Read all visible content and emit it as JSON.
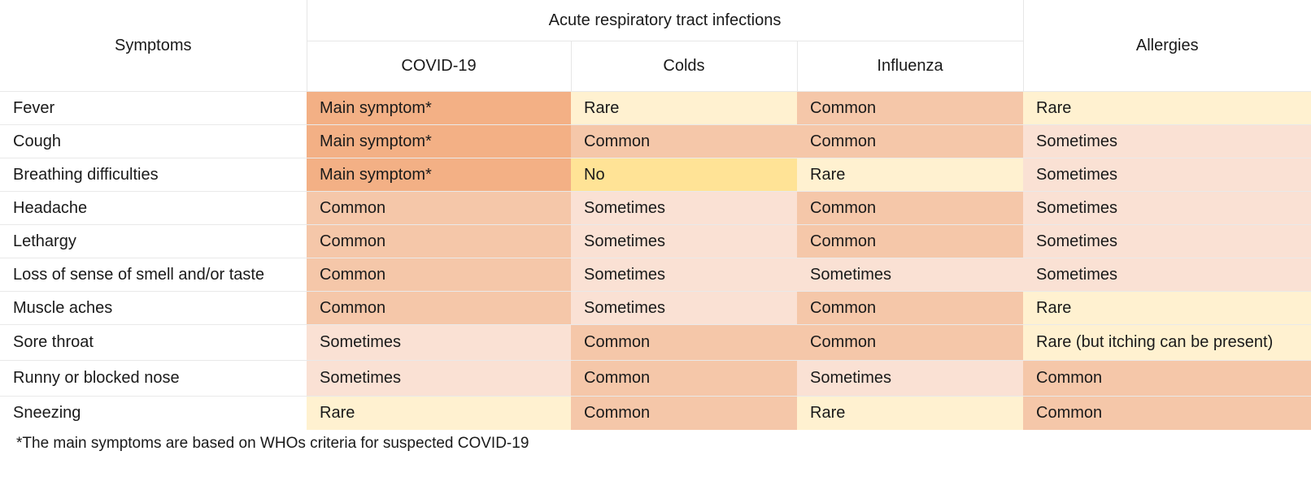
{
  "header": {
    "symptoms_label": "Symptoms",
    "group_label": "Acute respiratory tract infections",
    "columns": [
      "COVID-19",
      "Colds",
      "Influenza"
    ],
    "allergies_label": "Allergies"
  },
  "rows": [
    {
      "symptom": "Fever",
      "cells": [
        {
          "text": "Main symptom*",
          "level": "main"
        },
        {
          "text": "Rare",
          "level": "rare"
        },
        {
          "text": "Common",
          "level": "common"
        },
        {
          "text": "Rare",
          "level": "rare"
        }
      ]
    },
    {
      "symptom": "Cough",
      "cells": [
        {
          "text": "Main symptom*",
          "level": "main"
        },
        {
          "text": "Common",
          "level": "common"
        },
        {
          "text": "Common",
          "level": "common"
        },
        {
          "text": "Sometimes",
          "level": "sometimes"
        }
      ]
    },
    {
      "symptom": "Breathing difficulties",
      "cells": [
        {
          "text": "Main symptom*",
          "level": "main"
        },
        {
          "text": "No",
          "level": "no"
        },
        {
          "text": "Rare",
          "level": "rare"
        },
        {
          "text": "Sometimes",
          "level": "sometimes"
        }
      ]
    },
    {
      "symptom": "Headache",
      "cells": [
        {
          "text": "Common",
          "level": "common"
        },
        {
          "text": "Sometimes",
          "level": "sometimes"
        },
        {
          "text": "Common",
          "level": "common"
        },
        {
          "text": "Sometimes",
          "level": "sometimes"
        }
      ]
    },
    {
      "symptom": "Lethargy",
      "cells": [
        {
          "text": "Common",
          "level": "common"
        },
        {
          "text": "Sometimes",
          "level": "sometimes"
        },
        {
          "text": "Common",
          "level": "common"
        },
        {
          "text": "Sometimes",
          "level": "sometimes"
        }
      ]
    },
    {
      "symptom": "Loss of sense of smell and/or taste",
      "cells": [
        {
          "text": "Common",
          "level": "common"
        },
        {
          "text": "Sometimes",
          "level": "sometimes"
        },
        {
          "text": "Sometimes",
          "level": "sometimes"
        },
        {
          "text": "Sometimes",
          "level": "sometimes"
        }
      ]
    },
    {
      "symptom": "Muscle aches",
      "cells": [
        {
          "text": "Common",
          "level": "common"
        },
        {
          "text": "Sometimes",
          "level": "sometimes"
        },
        {
          "text": "Common",
          "level": "common"
        },
        {
          "text": "Rare",
          "level": "rare"
        }
      ]
    },
    {
      "symptom": "Sore throat",
      "cells": [
        {
          "text": "Sometimes",
          "level": "sometimes"
        },
        {
          "text": "Common",
          "level": "common"
        },
        {
          "text": "Common",
          "level": "common"
        },
        {
          "text": "Rare (but itching can be present)",
          "level": "rare"
        }
      ]
    },
    {
      "symptom": "Runny or blocked nose",
      "cells": [
        {
          "text": "Sometimes",
          "level": "sometimes"
        },
        {
          "text": "Common",
          "level": "common"
        },
        {
          "text": "Sometimes",
          "level": "sometimes"
        },
        {
          "text": "Common",
          "level": "common"
        }
      ]
    },
    {
      "symptom": "Sneezing",
      "cells": [
        {
          "text": "Rare",
          "level": "rare"
        },
        {
          "text": "Common",
          "level": "common"
        },
        {
          "text": "Rare",
          "level": "rare"
        },
        {
          "text": "Common",
          "level": "common"
        }
      ]
    }
  ],
  "level_colors": {
    "main": "#f3b085",
    "common": "#f5c7a9",
    "sometimes": "#fae1d4",
    "rare": "#fff1d0",
    "no": "#ffe396"
  },
  "footnote": "*The main symptoms are based on WHOs criteria for suspected COVID-19"
}
